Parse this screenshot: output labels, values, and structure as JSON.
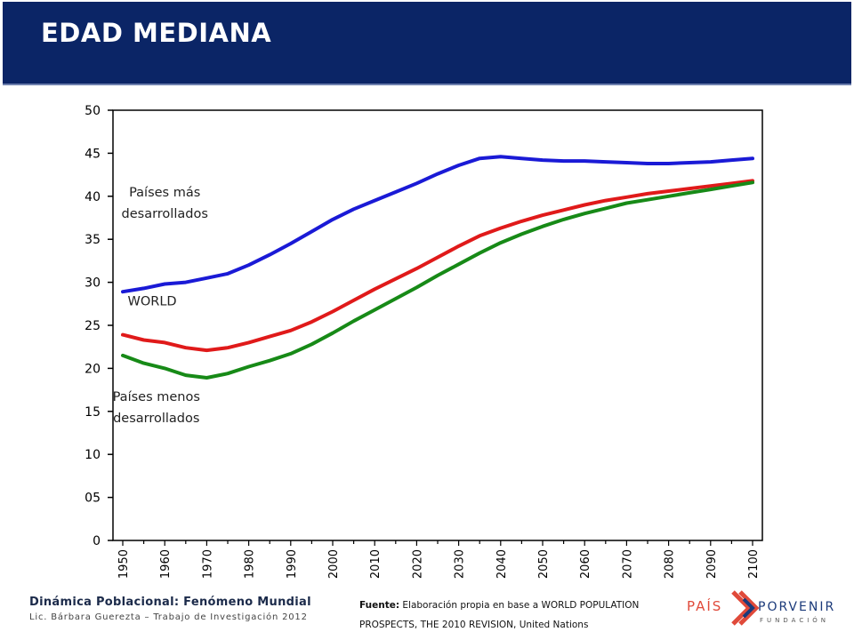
{
  "header": {
    "title": "EDAD MEDIANA",
    "bg_color": "#0b2566"
  },
  "chart_data": {
    "type": "line",
    "x": [
      1950,
      1955,
      1960,
      1965,
      1970,
      1975,
      1980,
      1985,
      1990,
      1995,
      2000,
      2005,
      2010,
      2015,
      2020,
      2025,
      2030,
      2035,
      2040,
      2045,
      2050,
      2055,
      2060,
      2065,
      2070,
      2075,
      2080,
      2085,
      2090,
      2095,
      2100
    ],
    "series": [
      {
        "name": "Países más desarrollados",
        "color": "#1a1ad6",
        "values": [
          28.9,
          29.3,
          29.8,
          30.0,
          30.5,
          31.0,
          32.0,
          33.2,
          34.5,
          35.9,
          37.3,
          38.5,
          39.5,
          40.5,
          41.5,
          42.6,
          43.6,
          44.4,
          44.6,
          44.4,
          44.2,
          44.1,
          44.1,
          44.0,
          43.9,
          43.8,
          43.8,
          43.9,
          44.0,
          44.2,
          44.4
        ]
      },
      {
        "name": "WORLD",
        "color": "#e01a1a",
        "values": [
          23.9,
          23.3,
          23.0,
          22.4,
          22.1,
          22.4,
          23.0,
          23.7,
          24.4,
          25.4,
          26.6,
          27.9,
          29.2,
          30.4,
          31.6,
          32.9,
          34.2,
          35.4,
          36.3,
          37.1,
          37.8,
          38.4,
          39.0,
          39.5,
          39.9,
          40.3,
          40.6,
          40.9,
          41.2,
          41.5,
          41.8
        ]
      },
      {
        "name": "Países menos desarrollados",
        "color": "#178a17",
        "values": [
          21.5,
          20.6,
          20.0,
          19.2,
          18.9,
          19.4,
          20.2,
          20.9,
          21.7,
          22.8,
          24.1,
          25.5,
          26.8,
          28.1,
          29.4,
          30.8,
          32.1,
          33.4,
          34.6,
          35.6,
          36.5,
          37.3,
          38.0,
          38.6,
          39.2,
          39.6,
          40.0,
          40.4,
          40.8,
          41.2,
          41.6
        ]
      }
    ],
    "ylim": [
      0,
      50
    ],
    "yticks": [
      "0",
      "05",
      "10",
      "15",
      "20",
      "25",
      "30",
      "35",
      "40",
      "45",
      "50"
    ],
    "ytick_values": [
      0,
      5,
      10,
      15,
      20,
      25,
      30,
      35,
      40,
      45,
      50
    ],
    "xticks": [
      1950,
      1960,
      1970,
      1980,
      1990,
      2000,
      2010,
      2020,
      2030,
      2040,
      2050,
      2060,
      2070,
      2080,
      2090,
      2100
    ],
    "annotations": [
      {
        "lines": [
          "Países más",
          "desarrollados"
        ],
        "year": 1960,
        "value": 40.0
      },
      {
        "lines": [
          "WORLD"
        ],
        "year": 1957,
        "value": 27.3
      },
      {
        "lines": [
          "Países menos",
          "desarrollados"
        ],
        "year": 1958,
        "value": 16.2
      }
    ],
    "grid": false,
    "legend": "none"
  },
  "footer": {
    "line1": "Dinámica Poblacional: Fenómeno Mundial",
    "line2": "Lic. Bárbara Guerezta – Trabajo de Investigación 2012",
    "source_label": "Fuente:",
    "source_text": "Elaboración propia en base a WORLD POPULATION PROSPECTS, THE 2010 REVISION, United Nations"
  },
  "logo": {
    "word1": "PAÍS",
    "word2": "PORVENIR",
    "word3": "FUNDACIÓN",
    "color1": "#e04a3a",
    "color2": "#1b3a7a"
  }
}
